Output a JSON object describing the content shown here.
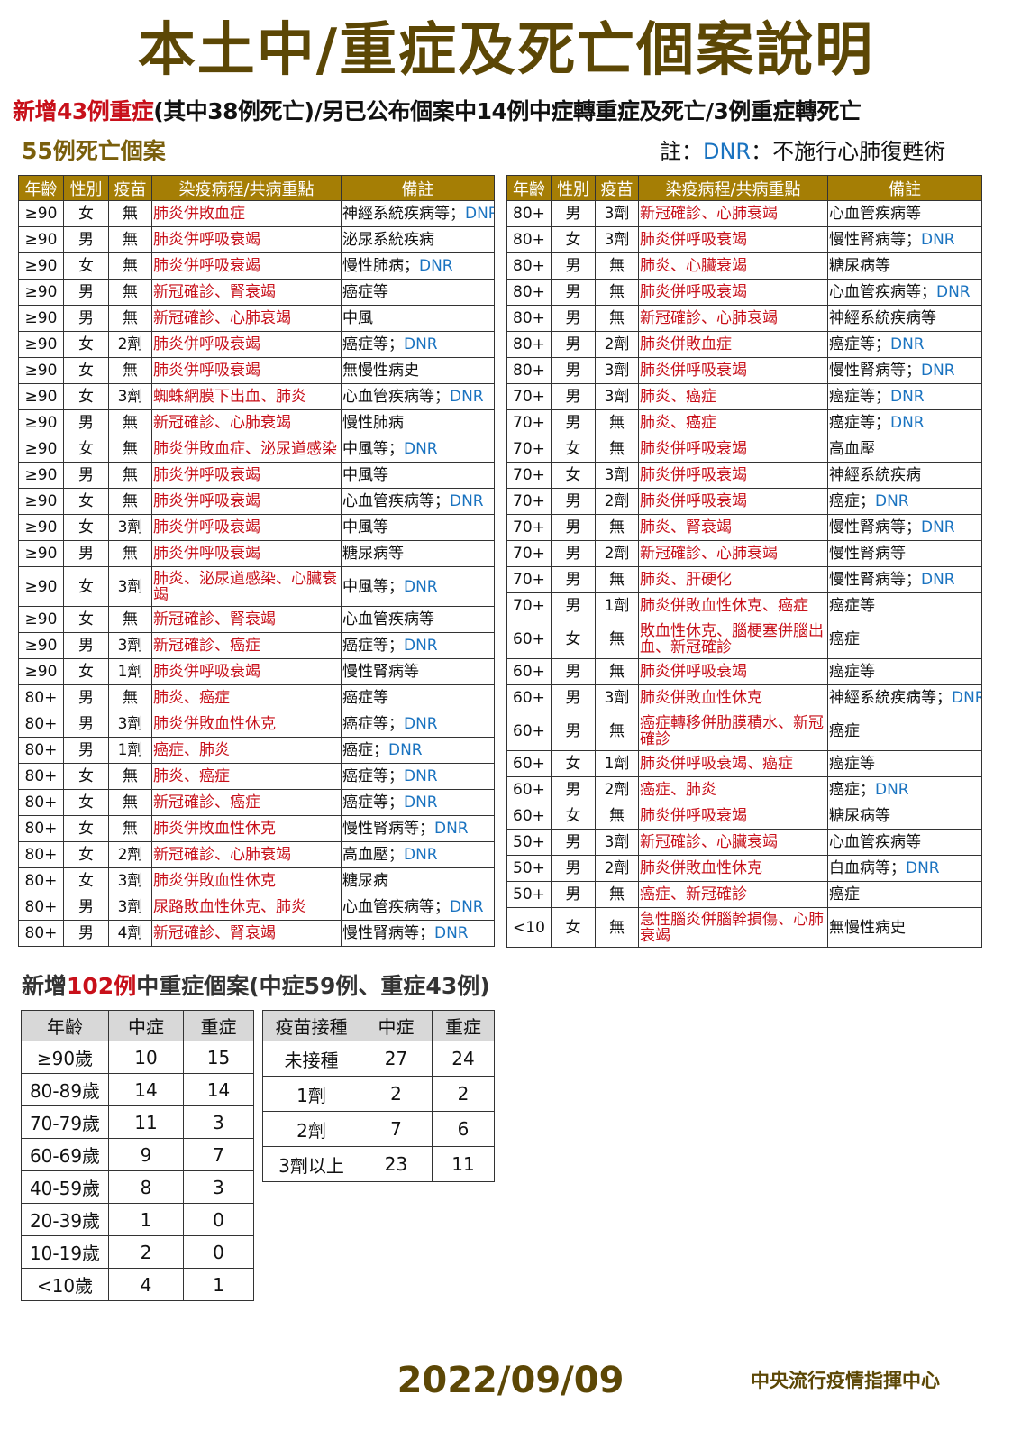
{
  "title": "本土中/重症及死亡個案說明",
  "subtitle": {
    "red": "新增43例重症",
    "rest": "(其中38例死亡)/另已公布個案中14例中症轉重症及死亡/3例重症轉死亡"
  },
  "deaths_title": "55例死亡個案",
  "dnr_note": {
    "prefix": "註：",
    "dnr": "DNR",
    "suffix": "：不施行心肺復甦術"
  },
  "case_headers": [
    "年齡",
    "性別",
    "疫苗",
    "染疫病程/共病重點",
    "備註"
  ],
  "colors": {
    "header_gold": "#a57e05",
    "title_brown": "#5c4705",
    "disease_red": "#c8101a",
    "dnr_blue": "#1a73c0"
  },
  "left_cases": [
    {
      "age": "≥90",
      "sex": "女",
      "vax": "無",
      "course": "肺炎併敗血症",
      "note": "神經系統疾病等；",
      "dnr": "DNR"
    },
    {
      "age": "≥90",
      "sex": "男",
      "vax": "無",
      "course": "肺炎併呼吸衰竭",
      "note": "泌尿系統疾病",
      "dnr": ""
    },
    {
      "age": "≥90",
      "sex": "女",
      "vax": "無",
      "course": "肺炎併呼吸衰竭",
      "note": "慢性肺病；",
      "dnr": "DNR"
    },
    {
      "age": "≥90",
      "sex": "男",
      "vax": "無",
      "course": "新冠確診、腎衰竭",
      "note": "癌症等",
      "dnr": ""
    },
    {
      "age": "≥90",
      "sex": "男",
      "vax": "無",
      "course": "新冠確診、心肺衰竭",
      "note": "中風",
      "dnr": ""
    },
    {
      "age": "≥90",
      "sex": "女",
      "vax": "2劑",
      "course": "肺炎併呼吸衰竭",
      "note": "癌症等；",
      "dnr": "DNR"
    },
    {
      "age": "≥90",
      "sex": "女",
      "vax": "無",
      "course": "肺炎併呼吸衰竭",
      "note": "無慢性病史",
      "dnr": ""
    },
    {
      "age": "≥90",
      "sex": "女",
      "vax": "3劑",
      "course": "蜘蛛網膜下出血、肺炎",
      "note": "心血管疾病等；",
      "dnr": "DNR"
    },
    {
      "age": "≥90",
      "sex": "男",
      "vax": "無",
      "course": "新冠確診、心肺衰竭",
      "note": "慢性肺病",
      "dnr": ""
    },
    {
      "age": "≥90",
      "sex": "女",
      "vax": "無",
      "course": "肺炎併敗血症、泌尿道感染",
      "note": "中風等；",
      "dnr": "DNR"
    },
    {
      "age": "≥90",
      "sex": "男",
      "vax": "無",
      "course": "肺炎併呼吸衰竭",
      "note": "中風等",
      "dnr": ""
    },
    {
      "age": "≥90",
      "sex": "女",
      "vax": "無",
      "course": "肺炎併呼吸衰竭",
      "note": "心血管疾病等；",
      "dnr": "DNR"
    },
    {
      "age": "≥90",
      "sex": "女",
      "vax": "3劑",
      "course": "肺炎併呼吸衰竭",
      "note": "中風等",
      "dnr": ""
    },
    {
      "age": "≥90",
      "sex": "男",
      "vax": "無",
      "course": "肺炎併呼吸衰竭",
      "note": "糖尿病等",
      "dnr": ""
    },
    {
      "age": "≥90",
      "sex": "女",
      "vax": "3劑",
      "course": "肺炎、泌尿道感染、心臟衰竭",
      "note": "中風等；",
      "dnr": "DNR",
      "tall": true
    },
    {
      "age": "≥90",
      "sex": "女",
      "vax": "無",
      "course": "新冠確診、腎衰竭",
      "note": "心血管疾病等",
      "dnr": ""
    },
    {
      "age": "≥90",
      "sex": "男",
      "vax": "3劑",
      "course": "新冠確診、癌症",
      "note": "癌症等；",
      "dnr": "DNR"
    },
    {
      "age": "≥90",
      "sex": "女",
      "vax": "1劑",
      "course": "肺炎併呼吸衰竭",
      "note": "慢性腎病等",
      "dnr": ""
    },
    {
      "age": "80+",
      "sex": "男",
      "vax": "無",
      "course": "肺炎、癌症",
      "note": "癌症等",
      "dnr": ""
    },
    {
      "age": "80+",
      "sex": "男",
      "vax": "3劑",
      "course": "肺炎併敗血性休克",
      "note": "癌症等；",
      "dnr": "DNR"
    },
    {
      "age": "80+",
      "sex": "男",
      "vax": "1劑",
      "course": "癌症、肺炎",
      "note": "癌症；",
      "dnr": "DNR"
    },
    {
      "age": "80+",
      "sex": "女",
      "vax": "無",
      "course": "肺炎、癌症",
      "note": "癌症等；",
      "dnr": "DNR"
    },
    {
      "age": "80+",
      "sex": "女",
      "vax": "無",
      "course": "新冠確診、癌症",
      "note": "癌症等；",
      "dnr": "DNR"
    },
    {
      "age": "80+",
      "sex": "女",
      "vax": "無",
      "course": "肺炎併敗血性休克",
      "note": "慢性腎病等；",
      "dnr": "DNR"
    },
    {
      "age": "80+",
      "sex": "女",
      "vax": "2劑",
      "course": "新冠確診、心肺衰竭",
      "note": "高血壓；",
      "dnr": "DNR"
    },
    {
      "age": "80+",
      "sex": "女",
      "vax": "3劑",
      "course": "肺炎併敗血性休克",
      "note": "糖尿病",
      "dnr": ""
    },
    {
      "age": "80+",
      "sex": "男",
      "vax": "3劑",
      "course": "尿路敗血性休克、肺炎",
      "note": "心血管疾病等；",
      "dnr": "DNR"
    },
    {
      "age": "80+",
      "sex": "男",
      "vax": "4劑",
      "course": "新冠確診、腎衰竭",
      "note": "慢性腎病等；",
      "dnr": "DNR"
    }
  ],
  "right_cases": [
    {
      "age": "80+",
      "sex": "男",
      "vax": "3劑",
      "course": "新冠確診、心肺衰竭",
      "note": "心血管疾病等",
      "dnr": ""
    },
    {
      "age": "80+",
      "sex": "女",
      "vax": "3劑",
      "course": "肺炎併呼吸衰竭",
      "note": "慢性腎病等；",
      "dnr": "DNR"
    },
    {
      "age": "80+",
      "sex": "男",
      "vax": "無",
      "course": "肺炎、心臟衰竭",
      "note": "糖尿病等",
      "dnr": ""
    },
    {
      "age": "80+",
      "sex": "男",
      "vax": "無",
      "course": "肺炎併呼吸衰竭",
      "note": "心血管疾病等；",
      "dnr": "DNR"
    },
    {
      "age": "80+",
      "sex": "男",
      "vax": "無",
      "course": "新冠確診、心肺衰竭",
      "note": "神經系統疾病等",
      "dnr": ""
    },
    {
      "age": "80+",
      "sex": "男",
      "vax": "2劑",
      "course": "肺炎併敗血症",
      "note": "癌症等；",
      "dnr": "DNR"
    },
    {
      "age": "80+",
      "sex": "男",
      "vax": "3劑",
      "course": "肺炎併呼吸衰竭",
      "note": "慢性腎病等；",
      "dnr": "DNR"
    },
    {
      "age": "70+",
      "sex": "男",
      "vax": "3劑",
      "course": "肺炎、癌症",
      "note": "癌症等；",
      "dnr": "DNR"
    },
    {
      "age": "70+",
      "sex": "男",
      "vax": "無",
      "course": "肺炎、癌症",
      "note": "癌症等；",
      "dnr": "DNR"
    },
    {
      "age": "70+",
      "sex": "女",
      "vax": "無",
      "course": "肺炎併呼吸衰竭",
      "note": "高血壓",
      "dnr": ""
    },
    {
      "age": "70+",
      "sex": "女",
      "vax": "3劑",
      "course": "肺炎併呼吸衰竭",
      "note": "神經系統疾病",
      "dnr": ""
    },
    {
      "age": "70+",
      "sex": "男",
      "vax": "2劑",
      "course": "肺炎併呼吸衰竭",
      "note": "癌症；",
      "dnr": "DNR"
    },
    {
      "age": "70+",
      "sex": "男",
      "vax": "無",
      "course": "肺炎、腎衰竭",
      "note": "慢性腎病等；",
      "dnr": "DNR"
    },
    {
      "age": "70+",
      "sex": "男",
      "vax": "2劑",
      "course": "新冠確診、心肺衰竭",
      "note": "慢性腎病等",
      "dnr": ""
    },
    {
      "age": "70+",
      "sex": "男",
      "vax": "無",
      "course": "肺炎、肝硬化",
      "note": "慢性腎病等；",
      "dnr": "DNR"
    },
    {
      "age": "70+",
      "sex": "男",
      "vax": "1劑",
      "course": "肺炎併敗血性休克、癌症",
      "note": "癌症等",
      "dnr": ""
    },
    {
      "age": "60+",
      "sex": "女",
      "vax": "無",
      "course": "敗血性休克、腦梗塞併腦出血、新冠確診",
      "note": "癌症",
      "dnr": "",
      "tall": true
    },
    {
      "age": "60+",
      "sex": "男",
      "vax": "無",
      "course": "肺炎併呼吸衰竭",
      "note": "癌症等",
      "dnr": ""
    },
    {
      "age": "60+",
      "sex": "男",
      "vax": "3劑",
      "course": "肺炎併敗血性休克",
      "note": "神經系統疾病等；",
      "dnr": "DNR"
    },
    {
      "age": "60+",
      "sex": "男",
      "vax": "無",
      "course": "癌症轉移併肋膜積水、新冠確診",
      "note": "癌症",
      "dnr": "",
      "tall": true
    },
    {
      "age": "60+",
      "sex": "女",
      "vax": "1劑",
      "course": "肺炎併呼吸衰竭、癌症",
      "note": "癌症等",
      "dnr": ""
    },
    {
      "age": "60+",
      "sex": "男",
      "vax": "2劑",
      "course": "癌症、肺炎",
      "note": "癌症；",
      "dnr": "DNR"
    },
    {
      "age": "60+",
      "sex": "女",
      "vax": "無",
      "course": "肺炎併呼吸衰竭",
      "note": "糖尿病等",
      "dnr": ""
    },
    {
      "age": "50+",
      "sex": "男",
      "vax": "3劑",
      "course": "新冠確診、心臟衰竭",
      "note": "心血管疾病等",
      "dnr": ""
    },
    {
      "age": "50+",
      "sex": "男",
      "vax": "2劑",
      "course": "肺炎併敗血性休克",
      "note": "白血病等；",
      "dnr": "DNR"
    },
    {
      "age": "50+",
      "sex": "男",
      "vax": "無",
      "course": "癌症、新冠確診",
      "note": "癌症",
      "dnr": ""
    },
    {
      "age": "<10",
      "sex": "女",
      "vax": "無",
      "course": "急性腦炎併腦幹損傷、心肺衰竭",
      "note": "無慢性病史",
      "dnr": "",
      "tall": true
    }
  ],
  "new_cases_title": {
    "prefix": "新增",
    "red": "102例",
    "suffix": "中重症個案(中症59例、重症43例)"
  },
  "age_table": {
    "headers": [
      "年齡",
      "中症",
      "重症"
    ],
    "rows": [
      [
        "≥90歲",
        "10",
        "15"
      ],
      [
        "80-89歲",
        "14",
        "14"
      ],
      [
        "70-79歲",
        "11",
        "3"
      ],
      [
        "60-69歲",
        "9",
        "7"
      ],
      [
        "40-59歲",
        "8",
        "3"
      ],
      [
        "20-39歲",
        "1",
        "0"
      ],
      [
        "10-19歲",
        "2",
        "0"
      ],
      [
        "<10歲",
        "4",
        "1"
      ]
    ]
  },
  "vax_table": {
    "headers": [
      "疫苗接種",
      "中症",
      "重症"
    ],
    "rows": [
      [
        "未接種",
        "27",
        "24"
      ],
      [
        "1劑",
        "2",
        "2"
      ],
      [
        "2劑",
        "7",
        "6"
      ],
      [
        "3劑以上",
        "23",
        "11"
      ]
    ]
  },
  "date": "2022/09/09",
  "org": "中央流行疫情指揮中心"
}
